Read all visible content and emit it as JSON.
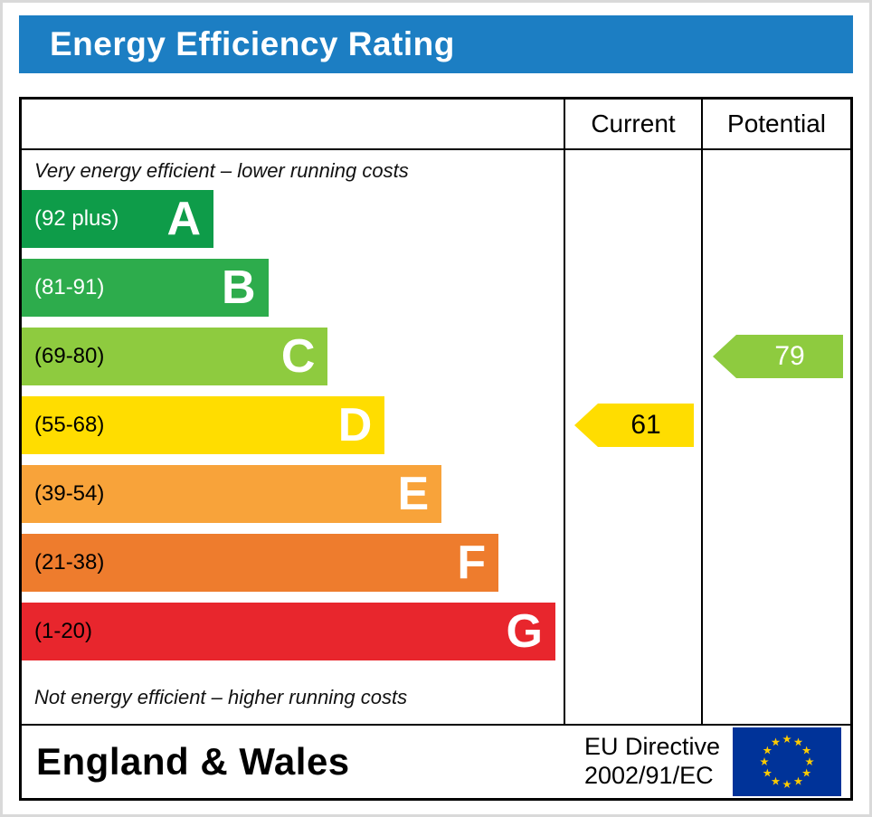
{
  "title": "Energy Efficiency Rating",
  "columns": {
    "current": "Current",
    "potential": "Potential"
  },
  "notes": {
    "top": "Very energy efficient – lower running costs",
    "bottom": "Not energy efficient – higher running costs"
  },
  "bands": [
    {
      "letter": "A",
      "range": "(92 plus)",
      "color": "#0e9c49",
      "range_text_color": "#ffffff",
      "width_pct": 35.4
    },
    {
      "letter": "B",
      "range": "(81-91)",
      "color": "#2dac4c",
      "range_text_color": "#ffffff",
      "width_pct": 45.5
    },
    {
      "letter": "C",
      "range": "(69-80)",
      "color": "#8ecb3f",
      "range_text_color": "#000000",
      "width_pct": 56.5
    },
    {
      "letter": "D",
      "range": "(55-68)",
      "color": "#ffdd00",
      "range_text_color": "#000000",
      "width_pct": 67.0
    },
    {
      "letter": "E",
      "range": "(39-54)",
      "color": "#f8a33a",
      "range_text_color": "#000000",
      "width_pct": 77.5
    },
    {
      "letter": "F",
      "range": "(21-38)",
      "color": "#ee7c2d",
      "range_text_color": "#000000",
      "width_pct": 88.0
    },
    {
      "letter": "G",
      "range": "(1-20)",
      "color": "#e8262d",
      "range_text_color": "#000000",
      "width_pct": 98.5
    }
  ],
  "ratings": {
    "current": {
      "value": "61",
      "band": "D",
      "band_index": 3,
      "color": "#ffdd00",
      "text_color": "#000000"
    },
    "potential": {
      "value": "79",
      "band": "C",
      "band_index": 2,
      "color": "#8ecb3f",
      "text_color": "#ffffff"
    }
  },
  "footer": {
    "region": "England & Wales",
    "directive_line1": "EU Directive",
    "directive_line2": "2002/91/EC",
    "flag": "eu-flag-icon"
  },
  "colors": {
    "header_bg": "#1c7ec3",
    "header_text": "#ffffff",
    "table_border": "#000000",
    "flag_blue": "#003399",
    "flag_star": "#ffcc00"
  },
  "chart_data": {
    "type": "bar",
    "title": "Energy Efficiency Rating",
    "categories": [
      "A (92 plus)",
      "B (81-91)",
      "C (69-80)",
      "D (55-68)",
      "E (39-54)",
      "F (21-38)",
      "G (1-20)"
    ],
    "band_ranges": [
      [
        92,
        100
      ],
      [
        81,
        91
      ],
      [
        69,
        80
      ],
      [
        55,
        68
      ],
      [
        39,
        54
      ],
      [
        21,
        38
      ],
      [
        1,
        20
      ]
    ],
    "band_colors": [
      "#0e9c49",
      "#2dac4c",
      "#8ecb3f",
      "#ffdd00",
      "#f8a33a",
      "#ee7c2d",
      "#e8262d"
    ],
    "series": [
      {
        "name": "Current",
        "value": 61,
        "band": "D"
      },
      {
        "name": "Potential",
        "value": 79,
        "band": "C"
      }
    ],
    "scale": [
      1,
      100
    ],
    "top_note": "Very energy efficient – lower running costs",
    "bottom_note": "Not energy efficient – higher running costs",
    "region": "England & Wales",
    "directive": "EU Directive 2002/91/EC"
  }
}
